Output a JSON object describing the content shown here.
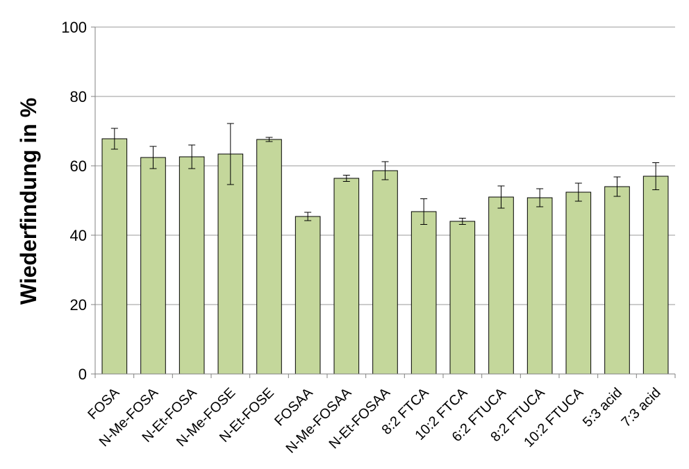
{
  "chart_data": {
    "type": "bar",
    "title": "",
    "xlabel": "",
    "ylabel": "Wiederfindung  in %",
    "ylim": [
      0,
      100
    ],
    "yticks": [
      0,
      20,
      40,
      60,
      80,
      100
    ],
    "grid": true,
    "legend": "none",
    "categories": [
      "FOSA",
      "N-Me-FOSA",
      "N-Et-FOSA",
      "N-Me-FOSE",
      "N-Et-FOSE",
      "FOSAA",
      "N-Me-FOSAA",
      "N-Et-FOSAA",
      "8:2 FTCA",
      "10:2 FTCA",
      "6:2 FTUCA",
      "8:2 FTUCA",
      "10:2 FTUCA",
      "5:3 acid",
      "7:3 acid"
    ],
    "values": [
      67.8,
      62.4,
      62.6,
      63.4,
      67.6,
      45.4,
      56.4,
      58.6,
      46.8,
      44.0,
      51.0,
      50.8,
      52.4,
      54.0,
      57.0
    ],
    "errors": [
      3.0,
      3.2,
      3.4,
      8.8,
      0.6,
      1.2,
      0.9,
      2.6,
      3.7,
      0.9,
      3.2,
      2.6,
      2.6,
      2.8,
      3.9
    ],
    "colors": {
      "bar_fill": "#c4d79b",
      "bar_stroke": "#000000",
      "grid": "#999999",
      "axis": "#808080"
    }
  }
}
